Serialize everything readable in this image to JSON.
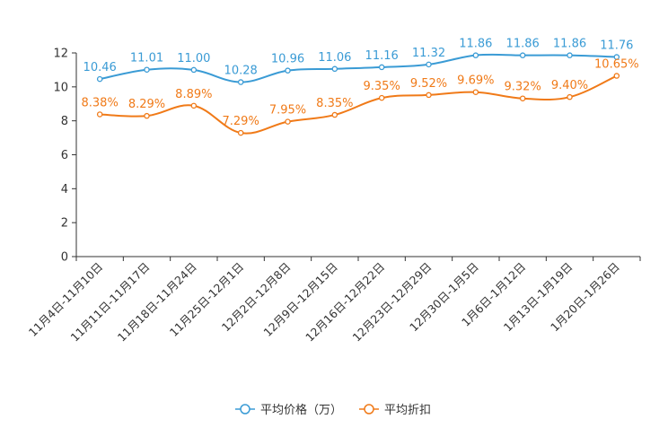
{
  "chart_data": {
    "type": "line",
    "title": "",
    "xlabel": "",
    "ylabel": "",
    "ylim": [
      0,
      12
    ],
    "yticks": [
      "0",
      "2",
      "4",
      "6",
      "8",
      "10",
      "12"
    ],
    "grid": false,
    "legend_position": "bottom-center",
    "categories": [
      "11月4日-11月10日",
      "11月11日-11月17日",
      "11月18日-11月24日",
      "11月25日-12月1日",
      "12月2日-12月8日",
      "12月9日-12月15日",
      "12月16日-12月22日",
      "12月23日-12月29日",
      "12月30日-1月5日",
      "1月6日-1月12日",
      "1月13日-1月19日",
      "1月20日-1月26日"
    ],
    "series": [
      {
        "name": "平均价格（万）",
        "color": "#3A9BD5",
        "values": [
          10.46,
          11.01,
          11.0,
          10.28,
          10.96,
          11.06,
          11.16,
          11.32,
          11.86,
          11.86,
          11.86,
          11.76
        ],
        "labels": [
          "10.46",
          "11.01",
          "11.00",
          "10.28",
          "10.96",
          "11.06",
          "11.16",
          "11.32",
          "11.86",
          "11.86",
          "11.86",
          "11.76"
        ]
      },
      {
        "name": "平均折扣",
        "color": "#F07A18",
        "values": [
          8.38,
          8.29,
          8.89,
          7.29,
          7.95,
          8.35,
          9.35,
          9.52,
          9.69,
          9.32,
          9.4,
          10.65
        ],
        "labels": [
          "8.38%",
          "8.29%",
          "8.89%",
          "7.29%",
          "7.95%",
          "8.35%",
          "9.35%",
          "9.52%",
          "9.69%",
          "9.32%",
          "9.40%",
          "10.65%"
        ]
      }
    ]
  }
}
